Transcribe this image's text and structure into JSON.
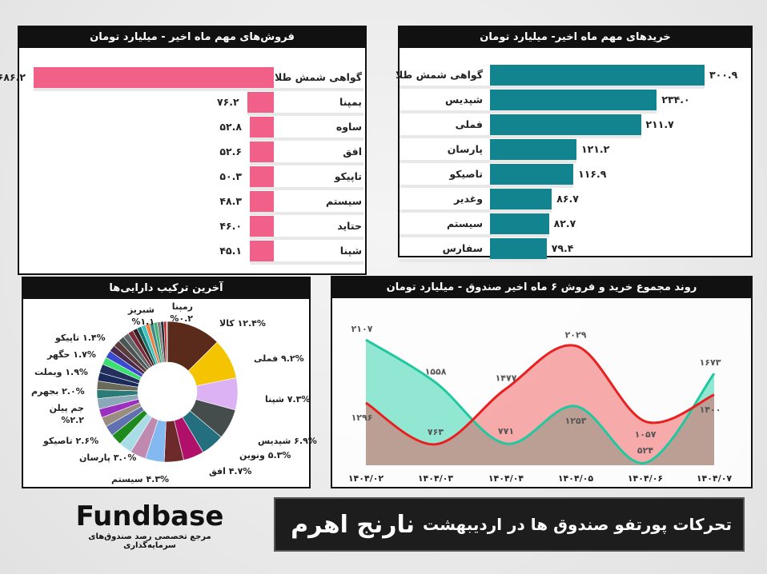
{
  "sales": {
    "title": "فروش‌های مهم ماه اخیر - میلیارد تومان",
    "color": "#f06088",
    "items": [
      {
        "name": "گواهی شمش طلا",
        "value": 686.2,
        "label": "۶۸۶.۲"
      },
      {
        "name": "بمپنا",
        "value": 76.2,
        "label": "۷۶.۲"
      },
      {
        "name": "ساوه",
        "value": 52.8,
        "label": "۵۲.۸"
      },
      {
        "name": "افق",
        "value": 52.6,
        "label": "۵۲.۶"
      },
      {
        "name": "تاپیکو",
        "value": 50.3,
        "label": "۵۰.۳"
      },
      {
        "name": "سیستم",
        "value": 48.3,
        "label": "۴۸.۳"
      },
      {
        "name": "حتاید",
        "value": 46.0,
        "label": "۴۶.۰"
      },
      {
        "name": "شپنا",
        "value": 45.1,
        "label": "۴۵.۱"
      }
    ]
  },
  "purchases": {
    "title": "خریدهای مهم ماه اخیر- میلیارد تومان",
    "color": "#12848f",
    "items": [
      {
        "name": "گواهی شمش طلا",
        "value": 300.9,
        "label": "۳۰۰.۹"
      },
      {
        "name": "شپدیس",
        "value": 234.0,
        "label": "۲۳۴.۰"
      },
      {
        "name": "فملی",
        "value": 211.7,
        "label": "۲۱۱.۷"
      },
      {
        "name": "پارسان",
        "value": 121.2,
        "label": "۱۲۱.۲"
      },
      {
        "name": "تاصیکو",
        "value": 116.9,
        "label": "۱۱۶.۹"
      },
      {
        "name": "وغدیر",
        "value": 86.7,
        "label": "۸۶.۷"
      },
      {
        "name": "سیستم",
        "value": 82.7,
        "label": "۸۲.۷"
      },
      {
        "name": "سفارس",
        "value": 79.4,
        "label": "۷۹.۴"
      }
    ]
  },
  "composition": {
    "title": "آخرین ترکیب دارایی‌ها",
    "slices": [
      {
        "name": "کالا",
        "value": 12.4,
        "label": "۱۲.۴% کالا",
        "color": "#5a2a1a"
      },
      {
        "name": "فملی",
        "value": 9.2,
        "label": "۹.۲% فملی",
        "color": "#f5c400"
      },
      {
        "name": "شپنا",
        "value": 7.3,
        "label": "۷.۳% شپنا",
        "color": "#ddb2f5"
      },
      {
        "name": "شپدیس",
        "value": 6.9,
        "label": "۶.۹% شپدیس",
        "color": "#444c4c"
      },
      {
        "name": "ونوین",
        "value": 5.3,
        "label": "۵.۳% ونوین",
        "color": "#236f7f"
      },
      {
        "name": "افق",
        "value": 4.7,
        "label": "۴.۷% افق",
        "color": "#b0106a"
      },
      {
        "value": 4.4,
        "color": "#6e2a2a"
      },
      {
        "name": "سیستم",
        "value": 4.3,
        "label": "۴.۳% سیستم",
        "color": "#84b8f0"
      },
      {
        "value": 3.6,
        "color": "#c08ab0"
      },
      {
        "name": "پارسان",
        "value": 3.0,
        "label": "۳.۰% پارسان",
        "color": "#a8dde8"
      },
      {
        "name": "تاصیکو",
        "value": 2.6,
        "label": "۲.۶% تاصیکو",
        "color": "#1e8a1e"
      },
      {
        "value": 2.4,
        "color": "#6070b0"
      },
      {
        "name": "جم پیلن",
        "value": 2.2,
        "label": "جم پیلن ۲.۲%",
        "color": "#9a8c80"
      },
      {
        "value": 2.0,
        "color": "#9a30c0"
      },
      {
        "value": 2.4,
        "color": "#8aa8b8"
      },
      {
        "name": "بجهرم",
        "value": 2.0,
        "label": "۲.۰% بجهرم",
        "color": "#2a7a78"
      },
      {
        "value": 2.0,
        "color": "#6a6a5a"
      },
      {
        "name": "وبملت",
        "value": 1.9,
        "label": "۱.۹% وبملت",
        "color": "#1a2a5a"
      },
      {
        "value": 2.0,
        "color": "#23305e"
      },
      {
        "name": "حگهر",
        "value": 1.7,
        "label": "۱.۷% حگهر",
        "color": "#3ce070"
      },
      {
        "value": 1.7,
        "color": "#3a4ad0"
      },
      {
        "value": 1.5,
        "color": "#4a2a4a"
      },
      {
        "value": 1.5,
        "color": "#5a3a3a"
      },
      {
        "name": "تاپیکو",
        "value": 1.4,
        "label": "۱.۴% تاپیکو",
        "color": "#4a5656"
      },
      {
        "value": 1.3,
        "color": "#606868"
      },
      {
        "value": 1.2,
        "color": "#7a2a3a"
      },
      {
        "name": "شبریز",
        "value": 1.1,
        "label": "شبریز ۱.۱%",
        "color": "#3a2020"
      },
      {
        "value": 1.0,
        "color": "#0e7a70"
      },
      {
        "value": 1.0,
        "color": "#40c0c0"
      },
      {
        "value": 1.0,
        "color": "#f08040"
      },
      {
        "value": 0.9,
        "color": "#3a8a8a"
      },
      {
        "value": 0.8,
        "color": "#40b070"
      },
      {
        "value": 0.8,
        "color": "#808080"
      },
      {
        "value": 0.7,
        "color": "#20303a"
      },
      {
        "value": 0.6,
        "color": "#c02020"
      },
      {
        "name": "رمپنا",
        "value": 0.2,
        "label": "رمپنا ۰.۲%",
        "color": "#9ab"
      }
    ]
  },
  "chart_data": {
    "type": "area",
    "title": "روند مجموع خرید و فروش ۶ ماه اخیر صندوق - میلیارد تومان",
    "categories": [
      "۱۴۰۴/۰۲",
      "۱۴۰۴/۰۳",
      "۱۴۰۴/۰۴",
      "۱۴۰۴/۰۵",
      "۱۴۰۴/۰۶",
      "۱۴۰۴/۰۷"
    ],
    "series": [
      {
        "values": [
          2107,
          1558,
          771,
          1253,
          524,
          1673
        ],
        "labels": [
          "۲۱۰۷",
          "۱۵۵۸",
          "۷۷۱",
          "۱۲۵۳",
          "۵۲۴",
          "۱۶۷۳"
        ],
        "color": "#20c8a0"
      },
      {
        "values": [
          1296,
          763,
          1477,
          2029,
          1057,
          1400
        ],
        "labels": [
          "۱۲۹۶",
          "۷۶۳",
          "۱۴۷۷",
          "۲۰۲۹",
          "۱۰۵۷",
          "۱۴۰۰"
        ],
        "color": "#e82020"
      }
    ],
    "ylim": [
      0,
      2200
    ],
    "grid": false
  },
  "footer": {
    "logo": "Fundbase",
    "tagline": "مرجع تخصصی رصد صندوق‌های سرمایه‌گذاری",
    "title": "تحرکات پورتفو صندوق ها در اردیبهشت",
    "fund": "نارنج اهرم"
  }
}
